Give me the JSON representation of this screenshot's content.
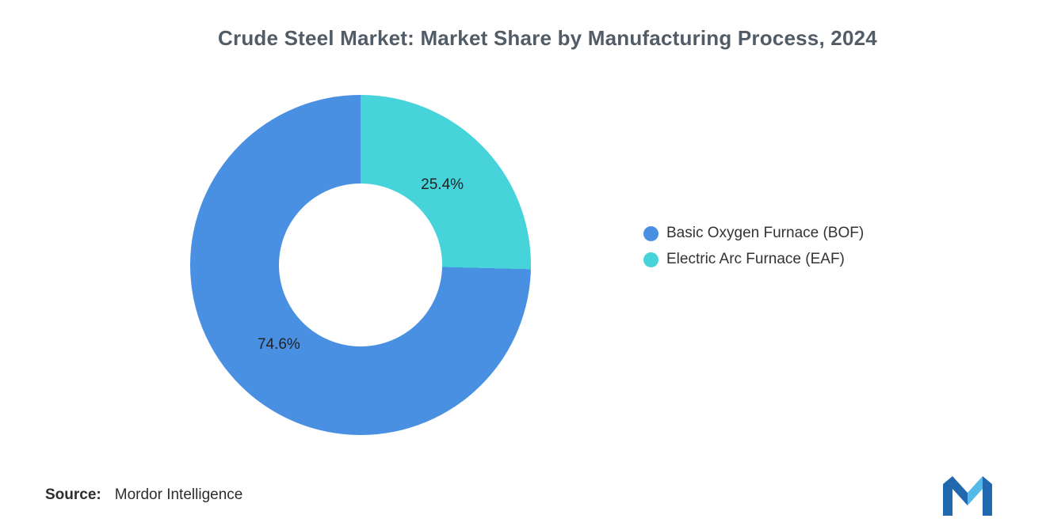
{
  "title": "Crude Steel Market: Market Share by Manufacturing Process, 2024",
  "source": {
    "label": "Source:",
    "value": "Mordor Intelligence"
  },
  "icons": {
    "logo": "mordor-intelligence-logo"
  },
  "chart_data": {
    "type": "pie",
    "subtype": "donut",
    "title": "Crude Steel Market: Market Share by Manufacturing Process, 2024",
    "categories": [
      "Basic Oxygen Furnace (BOF)",
      "Electric Arc Furnace (EAF)"
    ],
    "values": [
      74.6,
      25.4
    ],
    "data_labels": [
      "74.6%",
      "25.4%"
    ],
    "colors": [
      "#4a90e2",
      "#46d3da"
    ],
    "legend_position": "right",
    "start_angle_deg": 0,
    "direction": "clockwise",
    "slice_order_from_top_clockwise": [
      1,
      0
    ],
    "inner_radius_ratio": 0.48
  }
}
